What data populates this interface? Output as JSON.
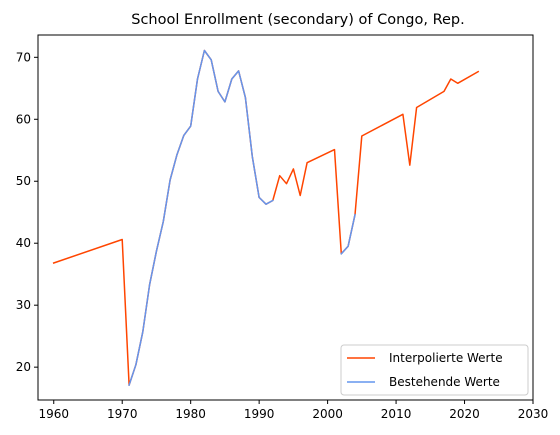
{
  "chart_data": {
    "type": "line",
    "title": "School Enrollment (secondary) of Congo, Rep.",
    "xlabel": "",
    "ylabel": "",
    "xlim": [
      1957.7,
      2030
    ],
    "ylim": [
      14.7,
      73.6
    ],
    "x_ticks": [
      1960,
      1970,
      1980,
      1990,
      2000,
      2010,
      2020,
      2030
    ],
    "y_ticks": [
      20,
      30,
      40,
      50,
      60,
      70
    ],
    "grid": false,
    "legend_position": "lower-right",
    "series": [
      {
        "name": "Interpolierte Werte",
        "color": "#ff4500",
        "x": [
          1960,
          1970,
          1971,
          1972,
          1973,
          1974,
          1975,
          1976,
          1977,
          1978,
          1979,
          1980,
          1981,
          1982,
          1983,
          1984,
          1985,
          1986,
          1987,
          1988,
          1989,
          1990,
          1991,
          1992,
          1993,
          1994,
          1995,
          1996,
          1997,
          2001,
          2002,
          2003,
          2004,
          2005,
          2011,
          2012,
          2013,
          2017,
          2018,
          2019,
          2022
        ],
        "y": [
          36.8,
          40.6,
          17.1,
          20.4,
          25.7,
          33.3,
          38.7,
          43.5,
          50.2,
          54.3,
          57.4,
          58.9,
          66.5,
          71.1,
          69.6,
          64.5,
          62.8,
          66.5,
          67.8,
          63.5,
          54.0,
          47.4,
          46.3,
          46.9,
          50.9,
          49.6,
          52.0,
          47.7,
          53.0,
          55.1,
          38.3,
          39.5,
          44.6,
          57.3,
          60.8,
          52.6,
          61.9,
          64.5,
          66.5,
          65.8,
          67.7
        ]
      },
      {
        "name": "Bestehende Werte",
        "color": "#6495ed",
        "x": [
          1971,
          1972,
          1973,
          1974,
          1975,
          1976,
          1977,
          1978,
          1979,
          1980,
          1981,
          1982,
          1983,
          1984,
          1985,
          1986,
          1987,
          1988,
          1989,
          1990,
          1991,
          1992,
          null,
          2002,
          2003,
          2004
        ],
        "y": [
          17.1,
          20.4,
          25.7,
          33.3,
          38.7,
          43.5,
          50.2,
          54.3,
          57.4,
          58.9,
          66.5,
          71.1,
          69.6,
          64.5,
          62.8,
          66.5,
          67.8,
          63.5,
          54.0,
          47.4,
          46.3,
          46.9,
          null,
          38.3,
          39.5,
          44.6
        ]
      }
    ]
  }
}
